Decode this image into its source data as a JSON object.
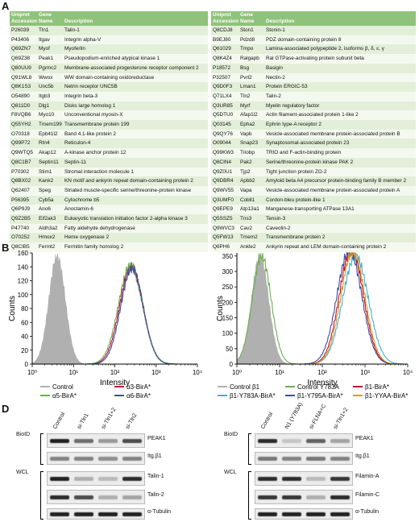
{
  "panels": {
    "A": "A",
    "B": "B",
    "C": "C",
    "D": "D"
  },
  "table_headers": {
    "accession": "Uniprot Accession",
    "gene": "Gene Name",
    "description": "Description"
  },
  "table_left": [
    [
      "P26039",
      "Tln1",
      "Talin-1"
    ],
    [
      "P43406",
      "Itgav",
      "Integrin alpha-V"
    ],
    [
      "Q69ZN7",
      "Myof",
      "Myoferlin"
    ],
    [
      "Q69Z38",
      "Peak1",
      "Pseudopodium-enriched atypical kinase 1"
    ],
    [
      "Q80UU9",
      "Pgrmc2",
      "Membrane-associated progesterone receptor component 2"
    ],
    [
      "Q91WL8",
      "Wwox",
      "WW domain-containing oxidoreductase"
    ],
    [
      "Q8K1S3",
      "Unc5b",
      "Netrin receptor UNC5B"
    ],
    [
      "O54890",
      "Itgb3",
      "Integrin beta-3"
    ],
    [
      "Q811D0",
      "Dlg1",
      "Disks large homolog 1"
    ],
    [
      "F8VQB6",
      "Myo10",
      "Unconventional myosin-X"
    ],
    [
      "Q55YH2",
      "Tmem199",
      "Transmembrane protein 199"
    ],
    [
      "O70318",
      "Epb41l2",
      "Band 4.1-like protein 2"
    ],
    [
      "Q99P72",
      "Rtn4",
      "Reticulon-4"
    ],
    [
      "Q9WTQ5",
      "Akap12",
      "A-kinase anchor protein 12"
    ],
    [
      "Q8C1B7",
      "Septin11",
      "Septin-11"
    ],
    [
      "P70302",
      "Stim1",
      "Stromal interaction molecule 1"
    ],
    [
      "Q8BX02",
      "Kank2",
      "KN motif and ankyrin repeat domain-containing protein 2"
    ],
    [
      "Q62407",
      "Speg",
      "Striated muscle-specific serine/threonine-protein kinase"
    ],
    [
      "P56395",
      "Cyb5a",
      "Cytochrome b5"
    ],
    [
      "Q6P9J9",
      "Ano6",
      "Anoctamin-6"
    ],
    [
      "Q9Z2B5",
      "Eif2ak3",
      "Eukaryotic translation initiation factor 2-alpha kinase 3"
    ],
    [
      "P47740",
      "Aldh3a2",
      "Fatty aldehyde dehydrogenase"
    ],
    [
      "O70252",
      "Hmox2",
      "Heme oxygenase 2"
    ],
    [
      "Q8CIB5",
      "Fermt2",
      "Fermitin family homolog 2"
    ]
  ],
  "table_right": [
    [
      "Q8CDJ8",
      "Ston1",
      "Stonin-1"
    ],
    [
      "B9EJ80",
      "Pdzd8",
      "PDZ domain-containing protein 8"
    ],
    [
      "Q61029",
      "Tmpo",
      "Lamina-associated polypeptide 2, isoforms β, δ, ε, γ"
    ],
    [
      "Q8K4Z4",
      "Ralgapb",
      "Ral GTPase-activating protein subunit beta"
    ],
    [
      "P18572",
      "Bsg",
      "Basigin"
    ],
    [
      "P32507",
      "Pvrl2",
      "Nectin-2"
    ],
    [
      "Q9D0F3",
      "Lman1",
      "Protein ERGIC-53"
    ],
    [
      "Q71LX4",
      "Tln2",
      "Talin-2"
    ],
    [
      "Q3UR85",
      "Myrf",
      "Myelin regulatory factor"
    ],
    [
      "Q5DTU0",
      "Afap1l2",
      "Actin filament-associated protein 1-like 2"
    ],
    [
      "Q03145",
      "Epha2",
      "Ephrin type-A receptor 2"
    ],
    [
      "Q9QY76",
      "Vapb",
      "Vesicle-associated membrane protein-associated protein B"
    ],
    [
      "O09044",
      "Snap23",
      "Synaptosomal-associated protein 23"
    ],
    [
      "Q99KW3",
      "Triobp",
      "TRIO and F-actin-binding protein"
    ],
    [
      "Q8CIN4",
      "Pak2",
      "Serine/threonine-protein kinase PAK 2"
    ],
    [
      "Q9Z0U1",
      "Tjp2",
      "Tight junction protein ZO-2"
    ],
    [
      "Q9DBR4",
      "Apbb2",
      "Amyloid beta A4 precursor protein-binding family B member 2"
    ],
    [
      "Q9WV55",
      "Vapa",
      "Vesicle-associated membrane protein-associated protein A"
    ],
    [
      "Q3UMF0",
      "Cobll1",
      "Cordon-bleu protein-like 1"
    ],
    [
      "Q9EPE9",
      "Atp13a1",
      "Manganese-transporting ATPase 13A1"
    ],
    [
      "Q5SSZ5",
      "Tns3",
      "Tensin-3"
    ],
    [
      "Q9WVC3",
      "Cav2",
      "Caveolin-2"
    ],
    [
      "Q5FW13",
      "Tmem2",
      "Transmembrane protein 2"
    ],
    [
      "Q6PH6",
      "Ankle2",
      "Ankyrin repeat and LEM domain-containing protein 2"
    ]
  ],
  "chart_data": [
    {
      "type": "area",
      "panel": "B",
      "xlabel": "Intensity",
      "ylabel": "Counts",
      "xscale": "log",
      "xlim": [
        1,
        10000
      ],
      "ylim": [
        0,
        160
      ],
      "yticks": [
        0,
        20,
        40,
        60,
        80,
        100,
        120,
        140,
        160
      ],
      "xticks": [
        "10⁰",
        "10¹",
        "10²",
        "10³",
        "10⁴"
      ],
      "series": [
        {
          "name": "Control",
          "color": "#b0b0b0",
          "filled": true,
          "peak_x": 4,
          "peak_y": 158,
          "sigma": 0.2
        },
        {
          "name": "α3-BirA*",
          "color": "#c8102e",
          "peak_x": 250,
          "peak_y": 140,
          "sigma": 0.28
        },
        {
          "name": "α5-BirA*",
          "color": "#6ab04c",
          "peak_x": 240,
          "peak_y": 142,
          "sigma": 0.29
        },
        {
          "name": "α6-BirA*",
          "color": "#3a4fa0",
          "peak_x": 260,
          "peak_y": 138,
          "sigma": 0.27
        }
      ]
    },
    {
      "type": "area",
      "panel": "C",
      "xlabel": "Intensity",
      "ylabel": "Counts",
      "xscale": "log",
      "xlim": [
        1,
        10000
      ],
      "ylim": [
        0,
        360
      ],
      "yticks": [
        0,
        50,
        100,
        150,
        200,
        250,
        300,
        350
      ],
      "xticks": [
        "10⁰",
        "10¹",
        "10²",
        "10³",
        "10⁴"
      ],
      "series": [
        {
          "name": "Control β1",
          "color": "#b0b0b0",
          "filled": true,
          "peak_x": 3.5,
          "peak_y": 358,
          "sigma": 0.2
        },
        {
          "name": "Control Y783A",
          "color": "#6ab04c",
          "peak_x": 3.8,
          "peak_y": 350,
          "sigma": 0.22
        },
        {
          "name": "β1-BirA*",
          "color": "#c8102e",
          "peak_x": 480,
          "peak_y": 372,
          "sigma": 0.28
        },
        {
          "name": "β1-Y783A-BirA*",
          "color": "#3fb3c8",
          "peak_x": 600,
          "peak_y": 350,
          "sigma": 0.3
        },
        {
          "name": "β1-Y795A-BirA*",
          "color": "#3a4fa0",
          "peak_x": 430,
          "peak_y": 368,
          "sigma": 0.29
        },
        {
          "name": "β1-YYAA-BirA*",
          "color": "#e8961e",
          "peak_x": 520,
          "peak_y": 365,
          "sigma": 0.28
        }
      ]
    }
  ],
  "blot_left": {
    "lanes": [
      "Control",
      "si-Tln1",
      "si-Tln1+2",
      "si-Tln2"
    ],
    "group_bioid": "BioID",
    "group_wcl": "WCL",
    "rows": [
      {
        "label": "PEAK1",
        "group": "bioid",
        "intens": [
          0.9,
          0.55,
          0.35,
          0.7
        ]
      },
      {
        "label": "Itg.β1",
        "group": "bioid",
        "intens": [
          0.45,
          0.45,
          0.4,
          0.45
        ]
      },
      {
        "label": "Talin-1",
        "group": "wcl",
        "intens": [
          0.9,
          0.25,
          0.2,
          0.85
        ]
      },
      {
        "label": "Talin-2",
        "group": "wcl",
        "intens": [
          0.85,
          0.7,
          0.25,
          0.3
        ]
      },
      {
        "label": "α-Tubulin",
        "group": "wcl",
        "intens": [
          0.9,
          0.9,
          0.9,
          0.9
        ]
      }
    ]
  },
  "blot_right": {
    "lanes": [
      "Control",
      "N1 (Y783A)",
      "si-FLNA+C",
      "si-Tln1+2"
    ],
    "group_bioid": "BioID",
    "group_wcl": "WCL",
    "rows": [
      {
        "label": "PEAK1",
        "group": "bioid",
        "intens": [
          0.85,
          0.15,
          0.6,
          0.3
        ]
      },
      {
        "label": "Itg.β1",
        "group": "bioid",
        "intens": [
          0.5,
          0.45,
          0.5,
          0.45
        ]
      },
      {
        "label": "Filamin-A",
        "group": "wcl",
        "intens": [
          0.85,
          0.85,
          0.2,
          0.8
        ]
      },
      {
        "label": "Filamin-C",
        "group": "wcl",
        "intens": [
          0.8,
          0.8,
          0.25,
          0.85
        ]
      },
      {
        "label": "α-Tubulin",
        "group": "wcl",
        "intens": [
          0.9,
          0.9,
          0.9,
          0.9
        ]
      }
    ]
  }
}
